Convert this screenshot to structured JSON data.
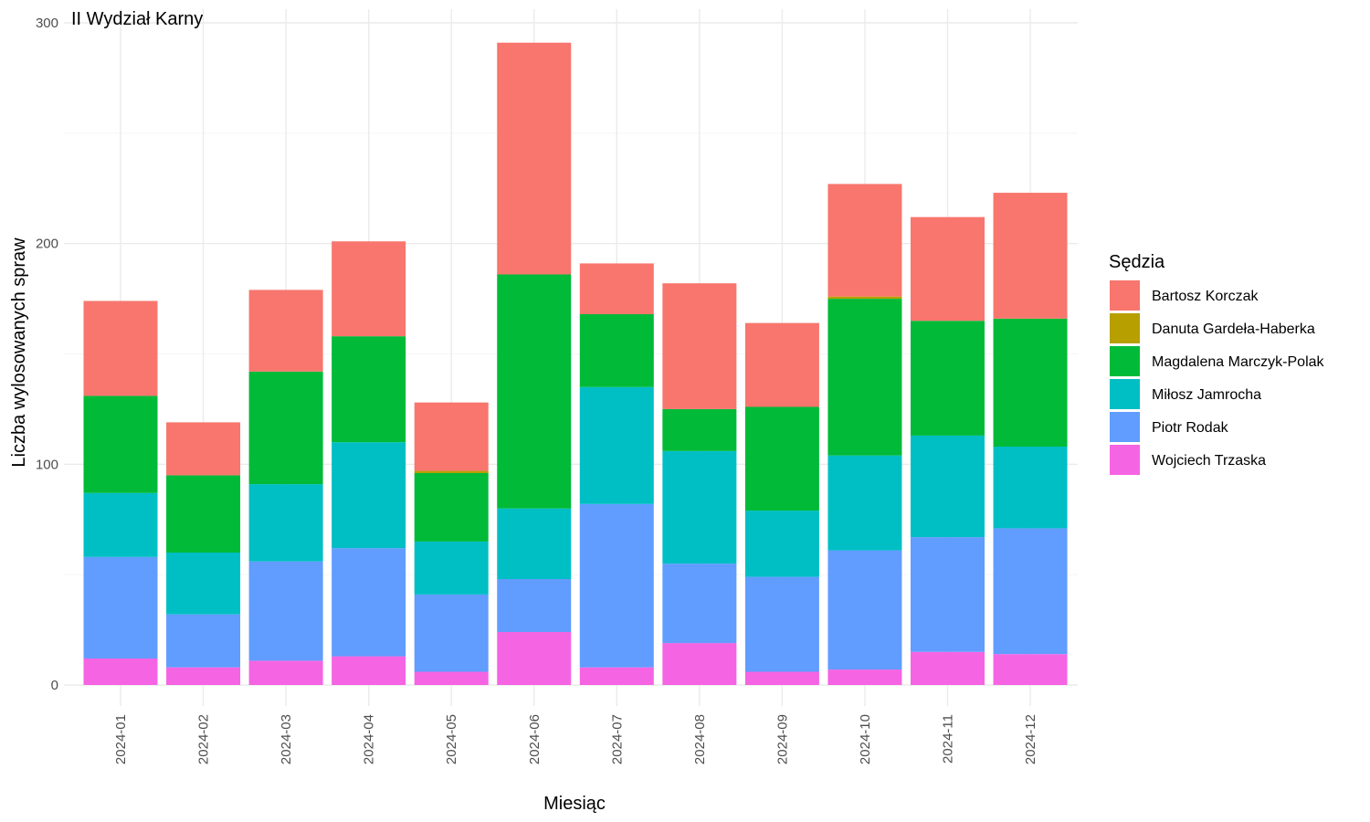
{
  "chart_data": {
    "type": "bar",
    "stacked": true,
    "title": "II Wydział Karny",
    "xlabel": "Miesiąc",
    "ylabel": "Liczba wylosowanych spraw",
    "ylim": [
      0,
      300
    ],
    "yticks": [
      0,
      100,
      200,
      300
    ],
    "grid": true,
    "legend_title": "Sędzia",
    "legend_position": "right",
    "categories": [
      "2024-01",
      "2024-02",
      "2024-03",
      "2024-04",
      "2024-05",
      "2024-06",
      "2024-07",
      "2024-08",
      "2024-09",
      "2024-10",
      "2024-11",
      "2024-12"
    ],
    "series": [
      {
        "name": "Bartosz Korczak",
        "color": "#F8766D",
        "values": [
          43,
          24,
          37,
          43,
          31,
          105,
          23,
          57,
          38,
          51,
          47,
          57
        ]
      },
      {
        "name": "Danuta Gardeła-Haberka",
        "color": "#B79F00",
        "values": [
          0,
          0,
          0,
          0,
          1,
          0,
          0,
          0,
          0,
          1,
          0,
          0
        ]
      },
      {
        "name": "Magdalena Marczyk-Polak",
        "color": "#00BA38",
        "values": [
          44,
          35,
          51,
          48,
          31,
          106,
          33,
          19,
          47,
          71,
          52,
          58
        ]
      },
      {
        "name": "Miłosz Jamrocha",
        "color": "#00BFC4",
        "values": [
          29,
          28,
          35,
          48,
          24,
          32,
          53,
          51,
          30,
          43,
          46,
          37
        ]
      },
      {
        "name": "Piotr Rodak",
        "color": "#619CFF",
        "values": [
          46,
          24,
          45,
          49,
          35,
          24,
          74,
          36,
          43,
          54,
          52,
          57
        ]
      },
      {
        "name": "Wojciech Trzaska",
        "color": "#F564E3",
        "values": [
          12,
          8,
          11,
          13,
          6,
          24,
          8,
          19,
          6,
          7,
          15,
          14
        ]
      }
    ]
  }
}
